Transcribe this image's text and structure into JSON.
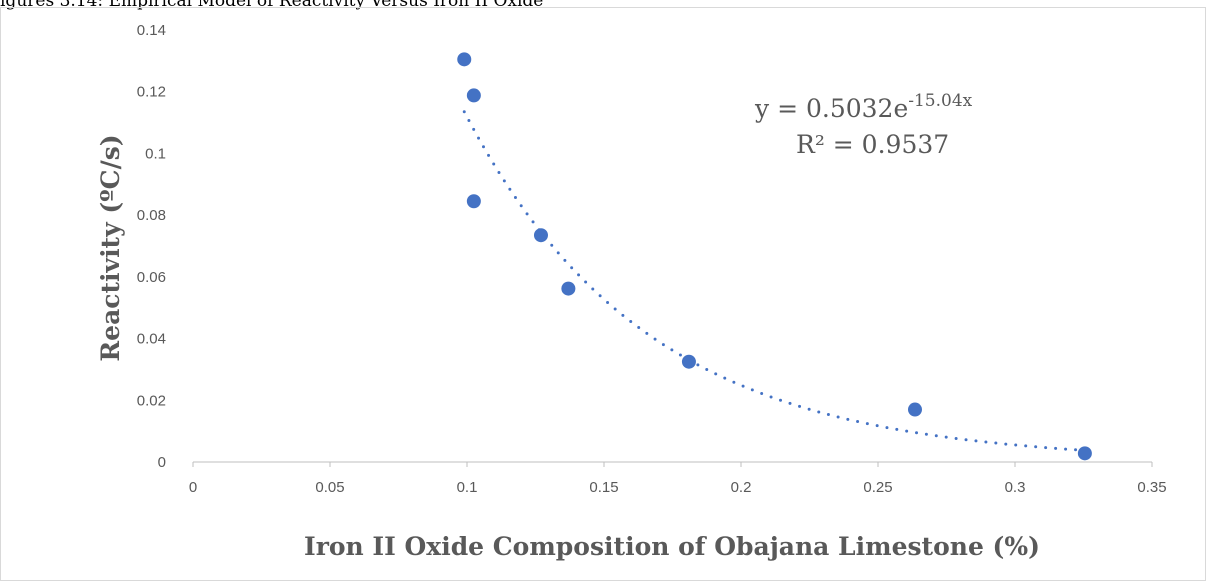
{
  "caption_fragment": "igures 3.14: Empirical Model of Reactivity Versus Iron II Oxide",
  "chart_data": {
    "type": "scatter",
    "xlabel": "Iron II Oxide Composition of Obajana Limestone (%)",
    "ylabel": "Reactivity (ºC/s)",
    "xlim": [
      0,
      0.35
    ],
    "ylim": [
      0,
      0.14
    ],
    "x_ticks": [
      "0",
      "0.05",
      "0.1",
      "0.15",
      "0.2",
      "0.25",
      "0.3",
      "0.35"
    ],
    "y_ticks": [
      "0",
      "0.02",
      "0.04",
      "0.06",
      "0.08",
      "0.1",
      "0.12",
      "0.14"
    ],
    "grid": false,
    "series": [
      {
        "color": "#4472c4",
        "points": [
          {
            "x": 0.099,
            "y": 0.1305
          },
          {
            "x": 0.1025,
            "y": 0.1188
          },
          {
            "x": 0.1025,
            "y": 0.0845
          },
          {
            "x": 0.127,
            "y": 0.0735
          },
          {
            "x": 0.137,
            "y": 0.0562
          },
          {
            "x": 0.181,
            "y": 0.0325
          },
          {
            "x": 0.2635,
            "y": 0.017
          },
          {
            "x": 0.3255,
            "y": 0.0028
          }
        ]
      }
    ],
    "trendline": {
      "type": "exponential",
      "a": 0.5032,
      "b": -15.04,
      "x_range": [
        0.099,
        0.3255
      ],
      "style": "dotted",
      "color": "#4472c4",
      "equation_main": "y = 0.5032e",
      "equation_exponent": "-15.04x",
      "r_squared": "R² = 0.9537"
    }
  }
}
